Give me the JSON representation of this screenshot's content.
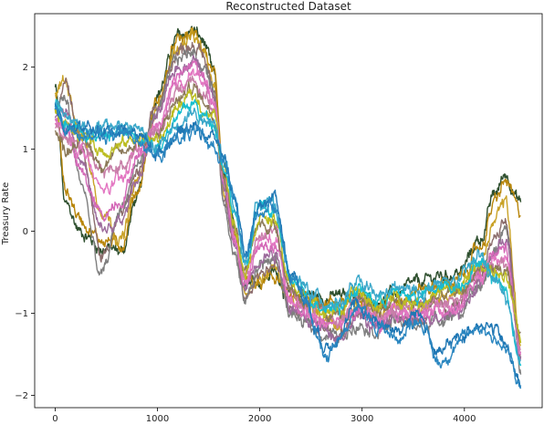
{
  "chart_data": {
    "type": "line",
    "title": "Reconstructed Dataset",
    "xlabel": "",
    "ylabel": "Treasury Rate",
    "xlim": [
      -200,
      4760
    ],
    "ylim": [
      -2.15,
      2.65
    ],
    "xticks": [
      0,
      1000,
      2000,
      3000,
      4000
    ],
    "yticks": [
      -2,
      -1,
      0,
      1,
      2
    ],
    "grid": false,
    "legend": "none",
    "n_points_per_series": 4550,
    "series_colors": [
      "#2e4f2e",
      "#b8860b",
      "#c9a227",
      "#8c6d6d",
      "#7f7f7f",
      "#9c6b9c",
      "#d46ab8",
      "#e377c2",
      "#c77fa8",
      "#8c7a5a",
      "#bcbd22",
      "#17becf",
      "#3aa7c9",
      "#1f77b4",
      "#2a86c0"
    ],
    "series": [
      {
        "x": [
          0,
          100,
          250,
          450,
          650,
          800,
          1000,
          1200,
          1350,
          1450,
          1550,
          1650,
          1750,
          1850,
          2000,
          2150,
          2300,
          2450,
          2550,
          2650,
          2800,
          2950,
          3150,
          3350,
          3550,
          3750,
          3950,
          4150,
          4300,
          4400,
          4550
        ],
        "y": [
          1.75,
          0.3,
          0.0,
          -0.2,
          -0.25,
          0.4,
          1.7,
          2.35,
          2.45,
          2.3,
          1.9,
          0.6,
          0.0,
          -0.55,
          -0.6,
          -0.5,
          -0.8,
          -0.75,
          -0.8,
          -0.8,
          -0.8,
          -0.8,
          -0.85,
          -0.75,
          -0.65,
          -0.55,
          -0.5,
          -0.1,
          0.45,
          0.7,
          0.35
        ]
      },
      {
        "x": [
          0,
          100,
          250,
          450,
          650,
          800,
          1000,
          1200,
          1350,
          1450,
          1550,
          1650,
          1750,
          1850,
          2000,
          2150,
          2300,
          2450,
          2550,
          2650,
          2800,
          2950,
          3150,
          3350,
          3550,
          3750,
          3950,
          4150,
          4300,
          4400,
          4550
        ],
        "y": [
          1.65,
          0.5,
          0.15,
          -0.1,
          -0.15,
          0.5,
          1.6,
          2.3,
          2.4,
          2.25,
          1.85,
          0.55,
          -0.05,
          -0.6,
          -0.65,
          -0.55,
          -0.85,
          -0.8,
          -0.85,
          -0.85,
          -0.85,
          -0.85,
          -0.9,
          -0.8,
          -0.7,
          -0.65,
          -0.6,
          -0.2,
          0.35,
          0.6,
          0.2
        ]
      },
      {
        "x": [
          0,
          100,
          250,
          450,
          650,
          800,
          1000,
          1200,
          1350,
          1450,
          1550,
          1650,
          1750,
          1850,
          2000,
          2150,
          2300,
          2450,
          2550,
          2650,
          2800,
          2950,
          3150,
          3350,
          3550,
          3750,
          3950,
          4150,
          4300,
          4400,
          4550
        ],
        "y": [
          1.7,
          1.85,
          1.2,
          0.3,
          -0.1,
          0.6,
          1.55,
          2.25,
          2.35,
          2.15,
          1.8,
          0.5,
          -0.1,
          -0.7,
          -0.55,
          -0.45,
          -0.9,
          -0.95,
          -1.0,
          -1.05,
          -1.1,
          -0.9,
          -1.0,
          -0.9,
          -0.95,
          -0.8,
          -0.75,
          -0.4,
          0.1,
          0.35,
          -1.4
        ]
      },
      {
        "x": [
          0,
          100,
          250,
          450,
          650,
          800,
          1000,
          1200,
          1350,
          1450,
          1550,
          1650,
          1750,
          1850,
          2000,
          2150,
          2300,
          2450,
          2550,
          2650,
          2800,
          2950,
          3150,
          3350,
          3550,
          3750,
          3950,
          4150,
          4300,
          4400,
          4550
        ],
        "y": [
          1.5,
          1.9,
          1.1,
          -0.3,
          0.2,
          0.7,
          1.5,
          2.2,
          2.3,
          2.1,
          1.75,
          0.45,
          -0.2,
          -0.8,
          -0.5,
          -0.4,
          -0.95,
          -1.05,
          -1.1,
          -1.15,
          -1.2,
          -1.0,
          -1.1,
          -1.0,
          -1.05,
          -0.95,
          -0.9,
          -0.55,
          -0.05,
          0.15,
          -1.5
        ]
      },
      {
        "x": [
          0,
          100,
          250,
          450,
          650,
          800,
          1000,
          1200,
          1350,
          1450,
          1550,
          1650,
          1750,
          1850,
          2000,
          2150,
          2300,
          2450,
          2550,
          2650,
          2800,
          2950,
          3150,
          3350,
          3550,
          3750,
          3950,
          4150,
          4300,
          4400,
          4550
        ],
        "y": [
          1.45,
          1.6,
          0.6,
          -0.55,
          0.3,
          0.8,
          1.45,
          2.1,
          2.2,
          2.0,
          1.7,
          0.4,
          -0.25,
          -0.85,
          -0.4,
          -0.35,
          -1.0,
          -1.15,
          -1.2,
          -1.25,
          -1.3,
          -1.1,
          -1.2,
          -1.1,
          -1.15,
          -1.05,
          -1.0,
          -0.7,
          -0.2,
          0.0,
          -1.6
        ]
      },
      {
        "x": [
          0,
          100,
          250,
          450,
          650,
          800,
          1000,
          1200,
          1350,
          1450,
          1550,
          1650,
          1750,
          1850,
          2000,
          2150,
          2300,
          2450,
          2550,
          2650,
          2800,
          2950,
          3150,
          3350,
          3550,
          3750,
          3950,
          4150,
          4300,
          4400,
          4550
        ],
        "y": [
          1.4,
          1.5,
          0.9,
          0.0,
          0.1,
          0.65,
          1.4,
          2.0,
          2.1,
          1.95,
          1.65,
          0.5,
          -0.15,
          -0.7,
          -0.3,
          -0.25,
          -0.9,
          -1.1,
          -1.15,
          -1.2,
          -1.25,
          -1.05,
          -1.15,
          -1.05,
          -1.1,
          -1.0,
          -0.95,
          -0.65,
          -0.25,
          -0.05,
          -1.55
        ]
      },
      {
        "x": [
          0,
          100,
          250,
          450,
          650,
          800,
          1000,
          1200,
          1350,
          1450,
          1550,
          1650,
          1750,
          1850,
          2000,
          2150,
          2300,
          2450,
          2550,
          2650,
          2800,
          2950,
          3150,
          3350,
          3550,
          3750,
          3950,
          4150,
          4300,
          4400,
          4550
        ],
        "y": [
          1.35,
          1.3,
          0.7,
          0.2,
          0.4,
          0.9,
          1.3,
          1.9,
          2.05,
          1.9,
          1.6,
          0.55,
          -0.1,
          -0.65,
          -0.2,
          -0.2,
          -0.85,
          -1.0,
          -1.1,
          -1.15,
          -1.15,
          -0.95,
          -1.1,
          -1.0,
          -1.05,
          -0.95,
          -0.9,
          -0.6,
          -0.3,
          -0.2,
          -1.5
        ]
      },
      {
        "x": [
          0,
          100,
          250,
          450,
          650,
          800,
          1000,
          1200,
          1350,
          1450,
          1550,
          1650,
          1750,
          1850,
          2000,
          2150,
          2300,
          2450,
          2550,
          2650,
          2800,
          2950,
          3150,
          3350,
          3550,
          3750,
          3950,
          4150,
          4300,
          4400,
          4550
        ],
        "y": [
          1.3,
          1.2,
          1.0,
          0.5,
          0.6,
          1.0,
          1.25,
          1.8,
          1.95,
          1.8,
          1.55,
          0.6,
          0.0,
          -0.6,
          -0.1,
          -0.1,
          -0.8,
          -0.95,
          -1.05,
          -1.1,
          -1.1,
          -0.9,
          -1.05,
          -0.95,
          -1.0,
          -0.9,
          -0.85,
          -0.55,
          -0.35,
          -0.3,
          -1.45
        ]
      },
      {
        "x": [
          0,
          100,
          250,
          450,
          650,
          800,
          1000,
          1200,
          1350,
          1450,
          1550,
          1650,
          1750,
          1850,
          2000,
          2150,
          2300,
          2450,
          2550,
          2650,
          2800,
          2950,
          3150,
          3350,
          3550,
          3750,
          3950,
          4150,
          4300,
          4400,
          4550
        ],
        "y": [
          1.25,
          1.1,
          1.1,
          0.7,
          0.8,
          1.05,
          1.2,
          1.7,
          1.85,
          1.7,
          1.5,
          0.65,
          0.05,
          -0.55,
          0.0,
          0.0,
          -0.75,
          -0.9,
          -1.0,
          -1.05,
          -1.05,
          -0.85,
          -1.0,
          -0.9,
          -0.95,
          -0.85,
          -0.8,
          -0.5,
          -0.4,
          -0.4,
          -1.4
        ]
      },
      {
        "x": [
          0,
          100,
          250,
          450,
          650,
          800,
          1000,
          1200,
          1350,
          1450,
          1550,
          1650,
          1750,
          1850,
          2000,
          2150,
          2300,
          2450,
          2550,
          2650,
          2800,
          2950,
          3150,
          3350,
          3550,
          3750,
          3950,
          4150,
          4300,
          4400,
          4550
        ],
        "y": [
          1.2,
          1.0,
          1.15,
          0.85,
          0.95,
          1.1,
          1.15,
          1.6,
          1.75,
          1.6,
          1.45,
          0.7,
          0.1,
          -0.5,
          0.1,
          0.05,
          -0.7,
          -0.85,
          -0.95,
          -1.0,
          -1.0,
          -0.8,
          -0.95,
          -0.85,
          -0.9,
          -0.8,
          -0.75,
          -0.45,
          -0.45,
          -0.5,
          -1.35
        ]
      },
      {
        "x": [
          0,
          100,
          250,
          450,
          650,
          800,
          1000,
          1200,
          1350,
          1450,
          1550,
          1650,
          1750,
          1850,
          2000,
          2150,
          2300,
          2450,
          2550,
          2650,
          2800,
          2950,
          3150,
          3350,
          3550,
          3750,
          3950,
          4150,
          4300,
          4400,
          4550
        ],
        "y": [
          1.5,
          1.3,
          1.2,
          1.0,
          1.05,
          1.15,
          1.1,
          1.5,
          1.65,
          1.5,
          1.4,
          0.75,
          0.15,
          -0.45,
          0.2,
          0.1,
          -0.65,
          -0.8,
          -0.9,
          -0.95,
          -0.95,
          -0.75,
          -0.9,
          -0.8,
          -0.85,
          -0.75,
          -0.7,
          -0.4,
          -0.5,
          -0.6,
          -1.3
        ]
      },
      {
        "x": [
          0,
          100,
          250,
          450,
          650,
          800,
          1000,
          1200,
          1350,
          1450,
          1550,
          1650,
          1750,
          1850,
          2000,
          2150,
          2300,
          2450,
          2550,
          2650,
          2800,
          2950,
          3150,
          3350,
          3550,
          3750,
          3950,
          4150,
          4300,
          4400,
          4550
        ],
        "y": [
          1.55,
          1.35,
          1.25,
          1.15,
          1.2,
          1.2,
          1.05,
          1.4,
          1.55,
          1.4,
          1.35,
          0.8,
          0.25,
          -0.4,
          0.3,
          0.2,
          -0.6,
          -0.75,
          -0.85,
          -0.9,
          -0.9,
          -0.7,
          -0.85,
          -0.75,
          -0.8,
          -0.7,
          -0.65,
          -0.35,
          -0.55,
          -0.7,
          -1.6
        ]
      },
      {
        "x": [
          0,
          100,
          250,
          450,
          650,
          800,
          1000,
          1200,
          1350,
          1450,
          1550,
          1650,
          1750,
          1850,
          2000,
          2150,
          2300,
          2450,
          2550,
          2650,
          2800,
          2950,
          3150,
          3350,
          3550,
          3750,
          3950,
          4150,
          4300,
          4400,
          4550
        ],
        "y": [
          1.6,
          1.4,
          1.3,
          1.25,
          1.3,
          1.25,
          1.0,
          1.3,
          1.45,
          1.3,
          1.3,
          0.85,
          0.35,
          -0.35,
          0.4,
          0.3,
          -0.55,
          -0.7,
          -0.8,
          -0.85,
          -0.85,
          -0.65,
          -0.8,
          -0.7,
          -0.75,
          -0.65,
          -0.6,
          -0.3,
          -0.6,
          -0.8,
          -1.7
        ]
      },
      {
        "x": [
          0,
          100,
          250,
          450,
          650,
          800,
          1000,
          1200,
          1350,
          1450,
          1550,
          1650,
          1750,
          1850,
          2000,
          2150,
          2300,
          2450,
          2550,
          2650,
          2800,
          2950,
          3150,
          3350,
          3550,
          3750,
          3950,
          4150,
          4300,
          4400,
          4550
        ],
        "y": [
          1.55,
          1.3,
          1.25,
          1.2,
          1.25,
          1.2,
          0.95,
          1.2,
          1.3,
          1.2,
          1.15,
          0.9,
          0.45,
          -0.3,
          0.35,
          0.4,
          -0.5,
          -0.8,
          -1.2,
          -1.4,
          -1.2,
          -0.9,
          -1.1,
          -1.2,
          -1.0,
          -1.5,
          -1.3,
          -1.1,
          -1.2,
          -1.4,
          -1.85
        ]
      },
      {
        "x": [
          0,
          100,
          250,
          450,
          650,
          800,
          1000,
          1200,
          1350,
          1450,
          1550,
          1650,
          1750,
          1850,
          2000,
          2150,
          2300,
          2450,
          2550,
          2650,
          2800,
          2950,
          3150,
          3350,
          3550,
          3750,
          3950,
          4150,
          4300,
          4400,
          4550
        ],
        "y": [
          1.45,
          1.25,
          1.2,
          1.15,
          1.2,
          1.15,
          0.9,
          1.15,
          1.2,
          1.1,
          1.05,
          0.85,
          0.4,
          -0.35,
          0.25,
          0.35,
          -0.55,
          -0.85,
          -1.25,
          -1.5,
          -1.25,
          -0.95,
          -1.15,
          -1.3,
          -1.05,
          -1.6,
          -1.35,
          -1.15,
          -1.3,
          -1.45,
          -1.9
        ]
      }
    ]
  }
}
